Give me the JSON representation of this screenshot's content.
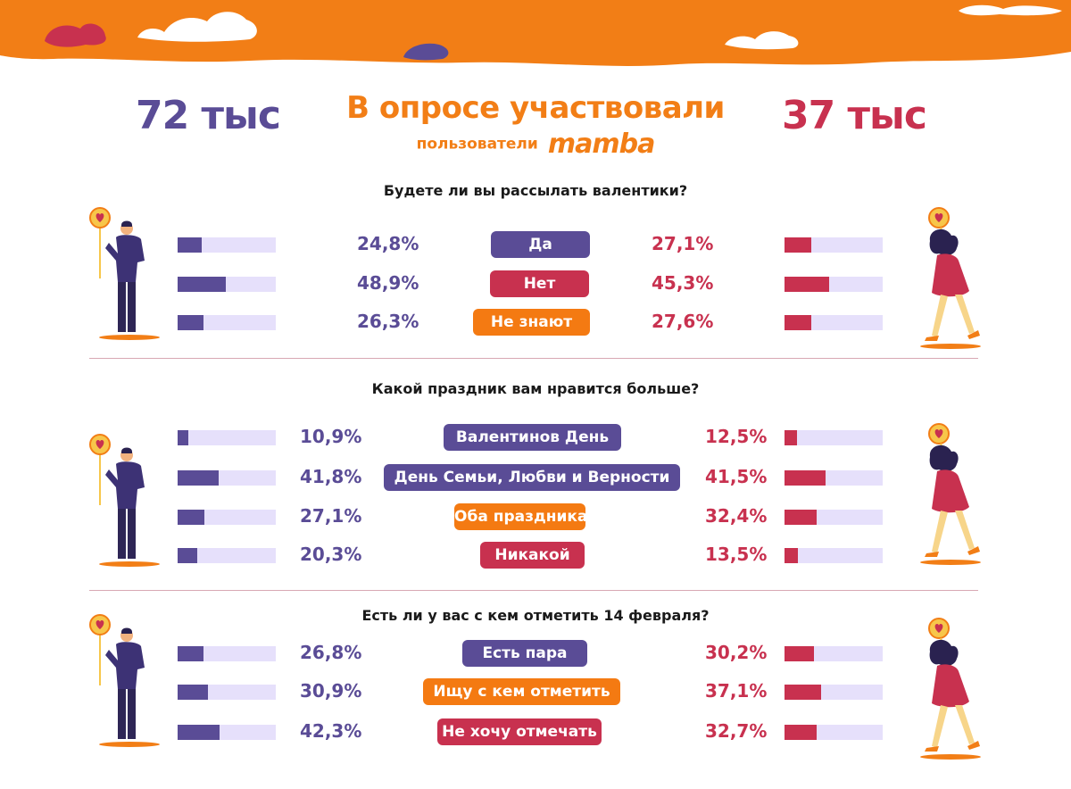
{
  "header": {
    "males_count": "72 тыс",
    "females_count": "37 тыс",
    "title": "В опросе участвовали",
    "subtitle": "пользователи",
    "brand": "mamba"
  },
  "colors": {
    "banner": "#f27e16",
    "male": "#5a4c96",
    "female": "#c8314f",
    "orange": "#f47a12",
    "track": "#e6e0fb"
  },
  "chart_data": [
    {
      "type": "bar",
      "title": "Будете ли вы рассылать валентики?",
      "categories": [
        "Да",
        "Нет",
        "Не знают"
      ],
      "series": [
        {
          "values": [
            24.8,
            48.9,
            26.3
          ]
        },
        {
          "values": [
            27.1,
            45.3,
            27.6
          ]
        }
      ],
      "labels_m": [
        "24,8%",
        "48,9%",
        "26,3%"
      ],
      "labels_f": [
        "27,1%",
        "45,3%",
        "27,6%"
      ],
      "category_colors": [
        "purple",
        "red",
        "orange"
      ]
    },
    {
      "type": "bar",
      "title": "Какой праздник вам нравится больше?",
      "categories": [
        "Валентинов День",
        "День Семьи, Любви и Верности",
        "Оба праздника",
        "Никакой"
      ],
      "series": [
        {
          "values": [
            10.9,
            41.8,
            27.1,
            20.3
          ]
        },
        {
          "values": [
            12.5,
            41.5,
            32.4,
            13.5
          ]
        }
      ],
      "labels_m": [
        "10,9%",
        "41,8%",
        "27,1%",
        "20,3%"
      ],
      "labels_f": [
        "12,5%",
        "41,5%",
        "32,4%",
        "13,5%"
      ],
      "category_colors": [
        "purple",
        "purple",
        "orange",
        "red"
      ]
    },
    {
      "type": "bar",
      "title": "Есть ли у вас с кем отметить 14 февраля?",
      "categories": [
        "Есть пара",
        "Ищу с кем отметить",
        "Не хочу отмечать"
      ],
      "series": [
        {
          "values": [
            26.8,
            30.9,
            42.3
          ]
        },
        {
          "values": [
            30.2,
            37.1,
            32.7
          ]
        }
      ],
      "labels_m": [
        "26,8%",
        "30,9%",
        "42,3%"
      ],
      "labels_f": [
        "30,2%",
        "37,1%",
        "32,7%"
      ],
      "category_colors": [
        "purple",
        "orange",
        "red"
      ]
    }
  ]
}
